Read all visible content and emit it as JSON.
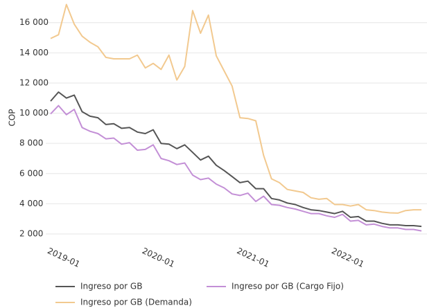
{
  "chart_data": {
    "type": "line",
    "y_label": "COP",
    "categories": [
      "2019-01",
      null,
      null,
      null,
      null,
      null,
      null,
      null,
      null,
      null,
      null,
      null,
      "2020-01",
      null,
      null,
      null,
      null,
      null,
      null,
      null,
      null,
      null,
      null,
      null,
      "2021-01",
      null,
      null,
      null,
      null,
      null,
      null,
      null,
      null,
      null,
      null,
      null,
      "2022-01",
      null,
      null,
      null,
      null,
      null,
      null,
      null,
      null,
      null,
      null,
      null
    ],
    "series": [
      {
        "name": "Ingreso por GB",
        "color": "#555555",
        "values": [
          10800,
          11400,
          11000,
          11200,
          10100,
          9800,
          9700,
          9250,
          9300,
          9000,
          9050,
          8750,
          8650,
          8900,
          8000,
          7950,
          7650,
          7900,
          7400,
          6900,
          7150,
          6550,
          6200,
          5800,
          5400,
          5500,
          5000,
          5000,
          4350,
          4250,
          4050,
          3950,
          3750,
          3600,
          3550,
          3450,
          3350,
          3500,
          3100,
          3150,
          2850,
          2850,
          2700,
          2600,
          2600,
          2550,
          2550,
          2500
        ]
      },
      {
        "name": "Ingreso por GB (Cargo Fijo)",
        "color": "#c38fd6",
        "values": [
          9950,
          10500,
          9900,
          10250,
          9050,
          8800,
          8650,
          8300,
          8350,
          7950,
          8050,
          7550,
          7600,
          7900,
          7000,
          6850,
          6600,
          6700,
          5900,
          5600,
          5700,
          5300,
          5050,
          4650,
          4550,
          4700,
          4150,
          4500,
          3950,
          3900,
          3750,
          3650,
          3500,
          3350,
          3350,
          3200,
          3100,
          3300,
          2850,
          2900,
          2600,
          2650,
          2500,
          2400,
          2400,
          2300,
          2300,
          2200
        ]
      },
      {
        "name": "Ingreso por GB (Demanda)",
        "color": "#f2c98f",
        "values": [
          14950,
          15200,
          17200,
          15900,
          15100,
          14700,
          14400,
          13700,
          13600,
          13600,
          13600,
          13850,
          13000,
          13300,
          12900,
          13850,
          12200,
          13100,
          16800,
          15300,
          16500,
          13800,
          12800,
          11800,
          9700,
          9650,
          9500,
          7200,
          5650,
          5400,
          4950,
          4850,
          4750,
          4400,
          4300,
          4350,
          3950,
          3950,
          3850,
          3950,
          3600,
          3550,
          3450,
          3400,
          3380,
          3550,
          3600,
          3600
        ]
      }
    ],
    "ylim": [
      1450,
      17500
    ],
    "yticks": [
      {
        "value": 2000,
        "label": "2 000"
      },
      {
        "value": 4000,
        "label": "4 000"
      },
      {
        "value": 6000,
        "label": "6 000"
      },
      {
        "value": 8000,
        "label": "8 000"
      },
      {
        "value": 10000,
        "label": "10 000"
      },
      {
        "value": 12000,
        "label": "12 000"
      },
      {
        "value": 14000,
        "label": "14 000"
      },
      {
        "value": 16000,
        "label": "16 000"
      }
    ],
    "grid": true
  }
}
